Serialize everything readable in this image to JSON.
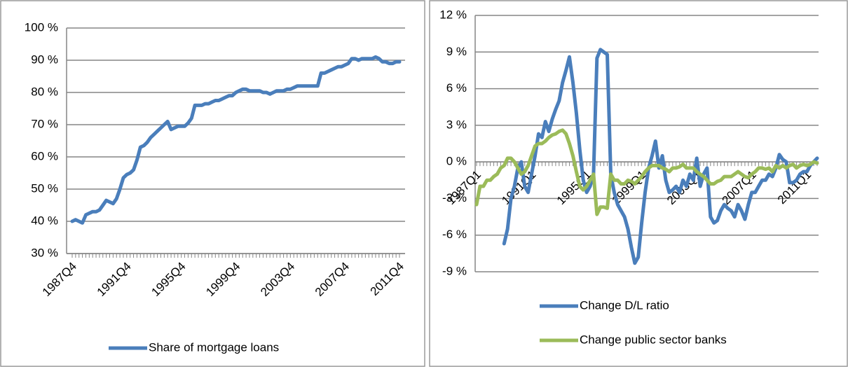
{
  "chart_data": [
    {
      "type": "line",
      "categories": [
        "1987Q4",
        null,
        null,
        null,
        null,
        null,
        null,
        null,
        null,
        null,
        null,
        null,
        null,
        null,
        null,
        null,
        "1991Q4",
        null,
        null,
        null,
        null,
        null,
        null,
        null,
        null,
        null,
        null,
        null,
        null,
        null,
        null,
        null,
        "1995Q4",
        null,
        null,
        null,
        null,
        null,
        null,
        null,
        null,
        null,
        null,
        null,
        null,
        null,
        null,
        null,
        "1999Q4",
        null,
        null,
        null,
        null,
        null,
        null,
        null,
        null,
        null,
        null,
        null,
        null,
        null,
        null,
        null,
        "2003Q4",
        null,
        null,
        null,
        null,
        null,
        null,
        null,
        null,
        null,
        null,
        null,
        null,
        null,
        null,
        null,
        "2007Q4",
        null,
        null,
        null,
        null,
        null,
        null,
        null,
        null,
        null,
        null,
        null,
        null,
        null,
        null,
        null,
        "2011Q4"
      ],
      "series": [
        {
          "name": "Share of mortgage loans",
          "color": "#4a7ebb",
          "values": [
            40,
            40.5,
            40,
            39.5,
            42,
            42.5,
            43,
            43,
            43.5,
            45,
            46.5,
            46,
            45.5,
            47,
            50,
            53.5,
            54.5,
            55,
            56,
            59,
            63,
            63.5,
            64.5,
            66,
            67,
            68,
            69,
            70,
            71,
            68.5,
            69,
            69.5,
            69.5,
            69.5,
            70.5,
            72,
            76,
            76,
            76,
            76.5,
            76.5,
            77,
            77.5,
            77.5,
            78,
            78.5,
            79,
            79,
            80,
            80.5,
            81,
            81,
            80.5,
            80.5,
            80.5,
            80.5,
            80,
            80,
            79.5,
            80,
            80.5,
            80.5,
            80.5,
            81,
            81,
            81.5,
            82,
            82,
            82,
            82,
            82,
            82,
            82,
            86,
            86,
            86.5,
            87,
            87.5,
            88,
            88,
            88.5,
            89,
            90.5,
            90.5,
            90,
            90.5,
            90.5,
            90.5,
            90.5,
            91,
            90.5,
            89.5,
            89.5,
            89,
            89,
            89.5,
            89.5
          ]
        }
      ],
      "ylim": [
        30,
        100
      ],
      "yticks": [
        {
          "value": 30,
          "label": "30 %"
        },
        {
          "value": 40,
          "label": "40 %"
        },
        {
          "value": 50,
          "label": "50 %"
        },
        {
          "value": 60,
          "label": "60 %"
        },
        {
          "value": 70,
          "label": "70 %"
        },
        {
          "value": 80,
          "label": "80 %"
        },
        {
          "value": 90,
          "label": "90 %"
        },
        {
          "value": 100,
          "label": "100 %"
        }
      ],
      "grid": true,
      "legend": "bottom"
    },
    {
      "type": "line",
      "categories": [
        "1987Q1",
        null,
        null,
        null,
        null,
        null,
        null,
        null,
        null,
        null,
        null,
        null,
        null,
        null,
        null,
        null,
        "1991Q1",
        null,
        null,
        null,
        null,
        null,
        null,
        null,
        null,
        null,
        null,
        null,
        null,
        null,
        null,
        null,
        "1995Q1",
        null,
        null,
        null,
        null,
        null,
        null,
        null,
        null,
        null,
        null,
        null,
        null,
        null,
        null,
        null,
        "1999Q1",
        null,
        null,
        null,
        null,
        null,
        null,
        null,
        null,
        null,
        null,
        null,
        null,
        null,
        null,
        null,
        "2003Q1",
        null,
        null,
        null,
        null,
        null,
        null,
        null,
        null,
        null,
        null,
        null,
        null,
        null,
        null,
        null,
        "2007Q1",
        null,
        null,
        null,
        null,
        null,
        null,
        null,
        null,
        null,
        null,
        null,
        null,
        null,
        null,
        null,
        "2011Q1",
        null,
        null,
        null
      ],
      "series": [
        {
          "name": "Change D/L ratio",
          "color": "#4a7ebb",
          "values": [
            null,
            null,
            null,
            null,
            null,
            null,
            null,
            null,
            -6.7,
            -5.5,
            -3,
            -2,
            -0.5,
            0,
            -2,
            -2.5,
            -1,
            0.5,
            2.3,
            2,
            3.3,
            2.5,
            3.5,
            4.3,
            5,
            6.5,
            7.5,
            8.6,
            6.5,
            4,
            1,
            -1.5,
            -2.5,
            -2,
            -1,
            8.5,
            9.2,
            9,
            8.8,
            -1,
            -2.5,
            -3.5,
            -4,
            -4.5,
            -5.5,
            -7,
            -8.3,
            -7.8,
            -5,
            -2.5,
            -0.5,
            0.5,
            1.7,
            -0.5,
            0.5,
            -1.5,
            -2.5,
            -2.3,
            -2,
            -2.5,
            -1.5,
            -2,
            -1,
            -1.5,
            0.3,
            -2,
            -1,
            -0.5,
            -4.5,
            -5,
            -4.8,
            -4,
            -3.5,
            -3.8,
            -4,
            -4.5,
            -3.5,
            -4,
            -4.7,
            -3.5,
            -2.5,
            -2.5,
            -2,
            -1.5,
            -1.5,
            -1,
            -1.2,
            -0.5,
            0.6,
            0.2,
            0,
            -1.7,
            -1.7,
            -1.5,
            -1,
            -0.8,
            -0.8,
            -0.3,
            0,
            0.3
          ]
        },
        {
          "name": "Change public sector banks",
          "color": "#9bbb59",
          "values": [
            -3.5,
            -2,
            -2,
            -1.5,
            -1.5,
            -1.2,
            -1,
            -0.5,
            -0.3,
            0.3,
            0.3,
            0,
            -0.5,
            -1,
            -0.8,
            -0.3,
            0.5,
            1.3,
            1.5,
            1.5,
            1.7,
            2,
            2.2,
            2.3,
            2.5,
            2.6,
            2.3,
            1.5,
            0.5,
            -0.8,
            -2,
            -2.3,
            -2,
            -1.5,
            -1,
            -4.3,
            -3.7,
            -3.7,
            -3.8,
            -1,
            -1.5,
            -1.5,
            -1.8,
            -1.8,
            -1.5,
            -1.6,
            -1.8,
            -1.5,
            -1.2,
            -0.8,
            -0.5,
            -0.3,
            -0.3,
            -0.3,
            -0.5,
            -0.6,
            -0.8,
            -0.5,
            -0.5,
            -0.4,
            -0.2,
            -0.5,
            -0.5,
            -0.5,
            -0.8,
            -1,
            -1.2,
            -1.5,
            -1.8,
            -1.8,
            -1.6,
            -1.5,
            -1.2,
            -1.2,
            -1.2,
            -1,
            -0.8,
            -1,
            -1.2,
            -1.3,
            -1,
            -0.8,
            -0.5,
            -0.5,
            -0.6,
            -0.5,
            -0.8,
            -0.3,
            -0.5,
            -0.3,
            -0.5,
            -0.3,
            -0.2,
            -0.5,
            -0.3,
            -0.2,
            -0.3,
            -0.2,
            0,
            -0.1
          ]
        }
      ],
      "ylim": [
        -9,
        12
      ],
      "yticks": [
        {
          "value": -9,
          "label": "-9 %"
        },
        {
          "value": -6,
          "label": "-6 %"
        },
        {
          "value": -3,
          "label": "-3 %"
        },
        {
          "value": 0,
          "label": "0 %"
        },
        {
          "value": 3,
          "label": "3 %"
        },
        {
          "value": 6,
          "label": "6 %"
        },
        {
          "value": 9,
          "label": "9 %"
        },
        {
          "value": 12,
          "label": "12 %"
        }
      ],
      "grid": true,
      "legend": "bottom"
    }
  ]
}
